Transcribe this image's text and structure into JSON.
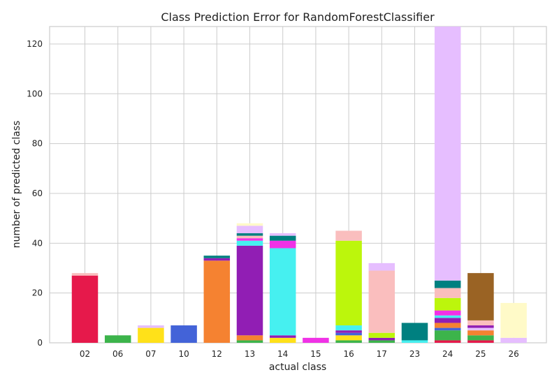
{
  "chart_data": {
    "type": "bar",
    "stacked": true,
    "title": "Class Prediction Error for RandomForestClassifier",
    "xlabel": "actual class",
    "ylabel": "number of predicted class",
    "ylim": [
      0,
      127
    ],
    "yticks": [
      0,
      20,
      40,
      60,
      80,
      100,
      120
    ],
    "grid": true,
    "categories": [
      "02",
      "06",
      "07",
      "10",
      "12",
      "13",
      "14",
      "15",
      "16",
      "17",
      "23",
      "24",
      "25",
      "26"
    ],
    "predicted_class_colors": {
      "02": "#e6194b",
      "06": "#3cb44b",
      "07": "#ffe119",
      "10": "#4363d8",
      "12": "#f58231",
      "13": "#911eb4",
      "14": "#46f0f0",
      "15": "#f032e6",
      "16": "#bcf60c",
      "17": "#fabebe",
      "23": "#008080",
      "24": "#e6beff",
      "25": "#9a6324",
      "26": "#fffac8"
    },
    "stacks": [
      {
        "actual": "02",
        "segments": [
          {
            "predicted": "02",
            "value": 27
          },
          {
            "predicted": "17",
            "value": 1
          }
        ]
      },
      {
        "actual": "06",
        "segments": [
          {
            "predicted": "06",
            "value": 3
          }
        ]
      },
      {
        "actual": "07",
        "segments": [
          {
            "predicted": "07",
            "value": 6
          },
          {
            "predicted": "24",
            "value": 1
          }
        ]
      },
      {
        "actual": "10",
        "segments": [
          {
            "predicted": "10",
            "value": 7
          }
        ]
      },
      {
        "actual": "12",
        "segments": [
          {
            "predicted": "12",
            "value": 33
          },
          {
            "predicted": "13",
            "value": 1
          },
          {
            "predicted": "23",
            "value": 1
          }
        ]
      },
      {
        "actual": "13",
        "segments": [
          {
            "predicted": "06",
            "value": 1
          },
          {
            "predicted": "12",
            "value": 2
          },
          {
            "predicted": "13",
            "value": 36
          },
          {
            "predicted": "14",
            "value": 2
          },
          {
            "predicted": "15",
            "value": 1
          },
          {
            "predicted": "17",
            "value": 1
          },
          {
            "predicted": "23",
            "value": 1
          },
          {
            "predicted": "24",
            "value": 3
          },
          {
            "predicted": "26",
            "value": 1
          }
        ]
      },
      {
        "actual": "14",
        "segments": [
          {
            "predicted": "07",
            "value": 2
          },
          {
            "predicted": "13",
            "value": 1
          },
          {
            "predicted": "14",
            "value": 35
          },
          {
            "predicted": "15",
            "value": 3
          },
          {
            "predicted": "23",
            "value": 2
          },
          {
            "predicted": "24",
            "value": 1
          }
        ]
      },
      {
        "actual": "15",
        "segments": [
          {
            "predicted": "15",
            "value": 2
          }
        ]
      },
      {
        "actual": "16",
        "segments": [
          {
            "predicted": "06",
            "value": 1
          },
          {
            "predicted": "07",
            "value": 2
          },
          {
            "predicted": "10",
            "value": 1
          },
          {
            "predicted": "13",
            "value": 1
          },
          {
            "predicted": "14",
            "value": 2
          },
          {
            "predicted": "16",
            "value": 34
          },
          {
            "predicted": "17",
            "value": 4
          }
        ]
      },
      {
        "actual": "17",
        "segments": [
          {
            "predicted": "06",
            "value": 1
          },
          {
            "predicted": "13",
            "value": 1
          },
          {
            "predicted": "16",
            "value": 2
          },
          {
            "predicted": "17",
            "value": 25
          },
          {
            "predicted": "24",
            "value": 3
          }
        ]
      },
      {
        "actual": "23",
        "segments": [
          {
            "predicted": "14",
            "value": 1
          },
          {
            "predicted": "23",
            "value": 7
          }
        ]
      },
      {
        "actual": "24",
        "segments": [
          {
            "predicted": "02",
            "value": 1
          },
          {
            "predicted": "06",
            "value": 4
          },
          {
            "predicted": "10",
            "value": 1
          },
          {
            "predicted": "12",
            "value": 2
          },
          {
            "predicted": "13",
            "value": 2
          },
          {
            "predicted": "14",
            "value": 1
          },
          {
            "predicted": "15",
            "value": 2
          },
          {
            "predicted": "16",
            "value": 5
          },
          {
            "predicted": "17",
            "value": 4
          },
          {
            "predicted": "23",
            "value": 3
          },
          {
            "predicted": "24",
            "value": 102
          }
        ]
      },
      {
        "actual": "25",
        "segments": [
          {
            "predicted": "02",
            "value": 1
          },
          {
            "predicted": "06",
            "value": 2
          },
          {
            "predicted": "12",
            "value": 2
          },
          {
            "predicted": "24",
            "value": 1
          },
          {
            "predicted": "13",
            "value": 1
          },
          {
            "predicted": "17",
            "value": 2
          },
          {
            "predicted": "25",
            "value": 19
          }
        ]
      },
      {
        "actual": "26",
        "segments": [
          {
            "predicted": "24",
            "value": 2
          },
          {
            "predicted": "26",
            "value": 14
          }
        ]
      }
    ]
  }
}
